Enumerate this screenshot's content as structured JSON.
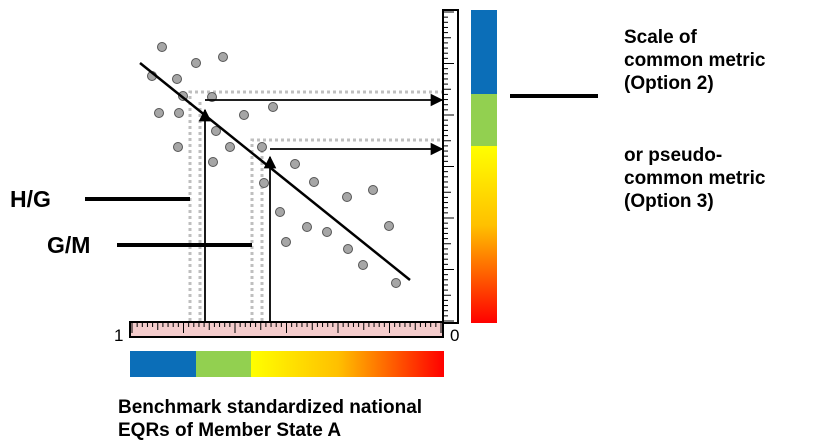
{
  "labels": {
    "hg": "H/G",
    "gm": "G/M",
    "scale_line1": "Scale of",
    "scale_line2": "common metric",
    "scale_line3": "(Option 2)",
    "pseudo_line1": "or pseudo-",
    "pseudo_line2": "common metric",
    "pseudo_line3": "(Option 3)",
    "bottom_line1": "Benchmark standardized national",
    "bottom_line2": "EQRs of Member State A"
  },
  "axis": {
    "left_value": "1",
    "right_value": "0"
  },
  "colors": {
    "blue": "#0B6EB8",
    "green": "#92D050",
    "yellow": "#FFFF00",
    "orange": "#FF9900",
    "red": "#FF0000",
    "point_fill": "#A6A6A6",
    "guide": "#BFBFBF"
  }
}
